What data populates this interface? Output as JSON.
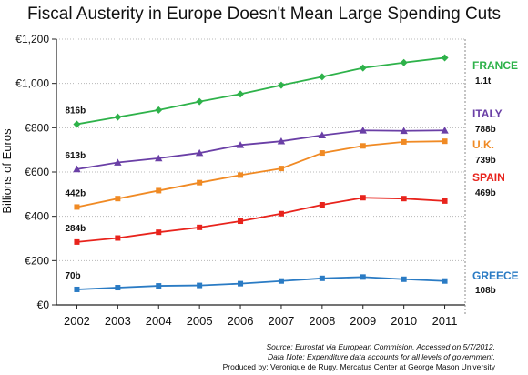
{
  "chart_data": {
    "type": "line",
    "title": "Fiscal Austerity in Europe Doesn't Mean Large Spending Cuts",
    "ylabel": "Billions of Euros",
    "xlabel": "",
    "x": [
      "2002",
      "2003",
      "2004",
      "2005",
      "2006",
      "2007",
      "2008",
      "2009",
      "2010",
      "2011"
    ],
    "ylim": [
      0,
      1200
    ],
    "yticks": [
      {
        "value": 0,
        "label": "€0"
      },
      {
        "value": 200,
        "label": "€200"
      },
      {
        "value": 400,
        "label": "€400"
      },
      {
        "value": 600,
        "label": "€600"
      },
      {
        "value": 800,
        "label": "€800"
      },
      {
        "value": 1000,
        "label": "€1,000"
      },
      {
        "value": 1200,
        "label": "€1,200"
      }
    ],
    "grid": true,
    "series": [
      {
        "name": "FRANCE",
        "color": "#2eb24a",
        "marker": "diamond",
        "start_label": "816b",
        "end_label": "1.1t",
        "values": [
          816,
          848,
          880,
          918,
          952,
          992,
          1030,
          1070,
          1094,
          1116
        ]
      },
      {
        "name": "ITALY",
        "color": "#6a3fa6",
        "marker": "triangle",
        "start_label": "613b",
        "end_label": "788b",
        "values": [
          613,
          643,
          662,
          686,
          722,
          739,
          766,
          788,
          786,
          788
        ]
      },
      {
        "name": "U.K.",
        "color": "#f08a24",
        "marker": "square",
        "start_label": "442b",
        "end_label": "739b",
        "values": [
          442,
          480,
          516,
          552,
          586,
          616,
          686,
          718,
          736,
          739
        ]
      },
      {
        "name": "SPAIN",
        "color": "#e8231c",
        "marker": "square",
        "start_label": "284b",
        "end_label": "469b",
        "values": [
          284,
          302,
          328,
          350,
          378,
          412,
          452,
          484,
          480,
          469
        ]
      },
      {
        "name": "GREECE",
        "color": "#2a7bc4",
        "marker": "square",
        "start_label": "70b",
        "end_label": "108b",
        "values": [
          70,
          78,
          86,
          88,
          96,
          108,
          120,
          126,
          116,
          108
        ]
      }
    ]
  },
  "footer": {
    "source": "Source: Eurostat via European Commision. Accessed on 5/7/2012.",
    "data_note": "Data Note: Expenditure data accounts for all levels of government.",
    "credit": "Produced by: Veronique de Rugy, Mercatus Center at George Mason University"
  }
}
